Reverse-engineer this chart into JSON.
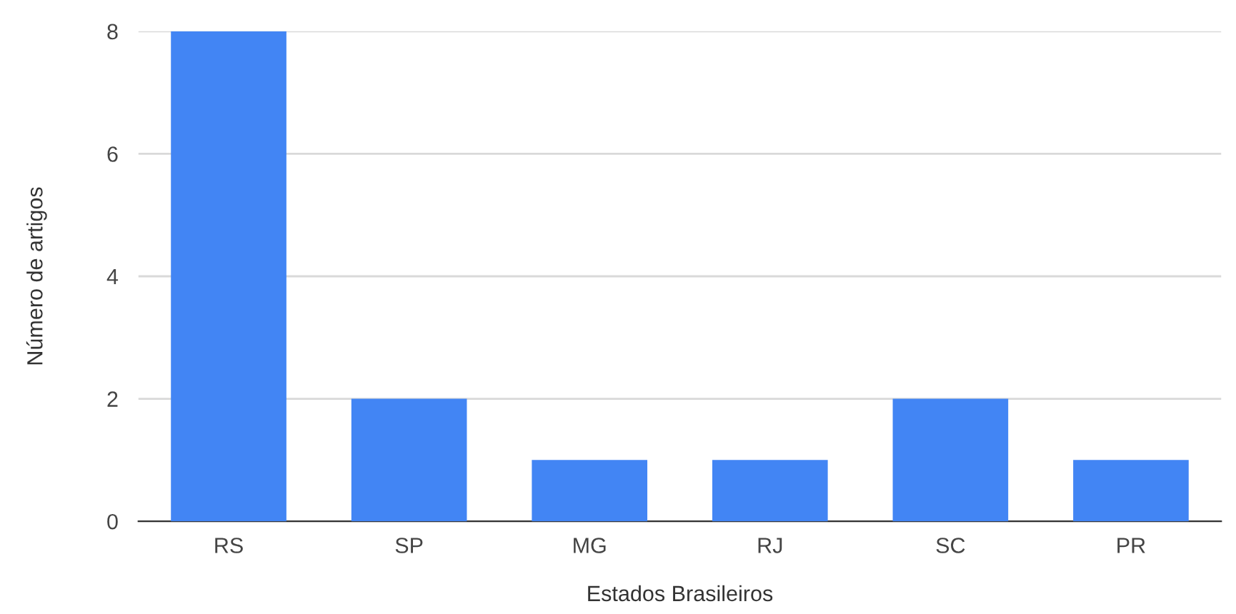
{
  "chart_data": {
    "type": "bar",
    "xlabel": "Estados Brasileiros",
    "ylabel": "Número de artigos",
    "categories": [
      "RS",
      "SP",
      "MG",
      "RJ",
      "SC",
      "PR"
    ],
    "values": [
      8,
      2,
      1,
      1,
      2,
      1
    ],
    "color": "#4285f4",
    "ylim": [
      0,
      8
    ],
    "yticks": [
      0,
      2,
      4,
      6,
      8
    ],
    "grid": "y",
    "legend": false
  }
}
